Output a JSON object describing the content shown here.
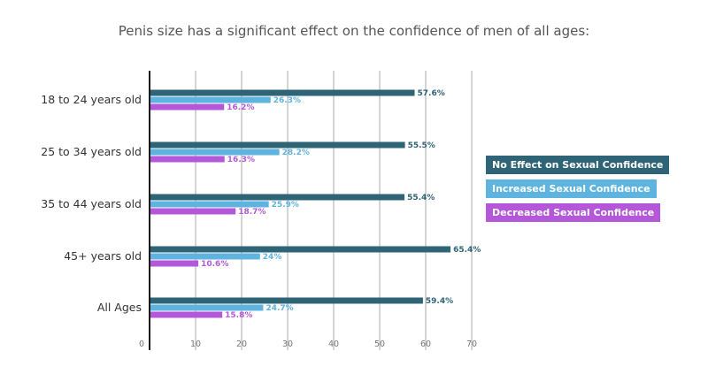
{
  "chart_data": {
    "type": "bar",
    "orientation": "horizontal",
    "title": "Penis size has a significant effect on the confidence of men of all ages:",
    "categories": [
      "18 to 24 years old",
      "25 to 34 years old",
      "35 to 44 years old",
      "45+ years old",
      "All Ages"
    ],
    "series": [
      {
        "name": "No Effect on Sexual Confidence",
        "color": "#2e6475",
        "values": [
          57.6,
          55.5,
          55.4,
          65.4,
          59.4
        ],
        "labels": [
          "57.6%",
          "55.5%",
          "55.4%",
          "65.4%",
          "59.4%"
        ]
      },
      {
        "name": "Increased Sexual Confidence",
        "color": "#5fb4df",
        "values": [
          26.3,
          28.2,
          25.9,
          24,
          24.7
        ],
        "labels": [
          "26.3%",
          "28.2%",
          "25.9%",
          "24%",
          "24.7%"
        ]
      },
      {
        "name": "Decreased Sexual Confidence",
        "color": "#b457d8",
        "values": [
          16.2,
          16.3,
          18.7,
          10.6,
          15.8
        ],
        "labels": [
          "16.2%",
          "16.3%",
          "18.7%",
          "10.6%",
          "15.8%"
        ]
      }
    ],
    "xlim": [
      0,
      70
    ],
    "xticks": [
      0,
      10,
      20,
      30,
      40,
      50,
      60,
      70
    ],
    "xlabel": "",
    "ylabel": "",
    "grid": true,
    "legend_position": "right"
  }
}
